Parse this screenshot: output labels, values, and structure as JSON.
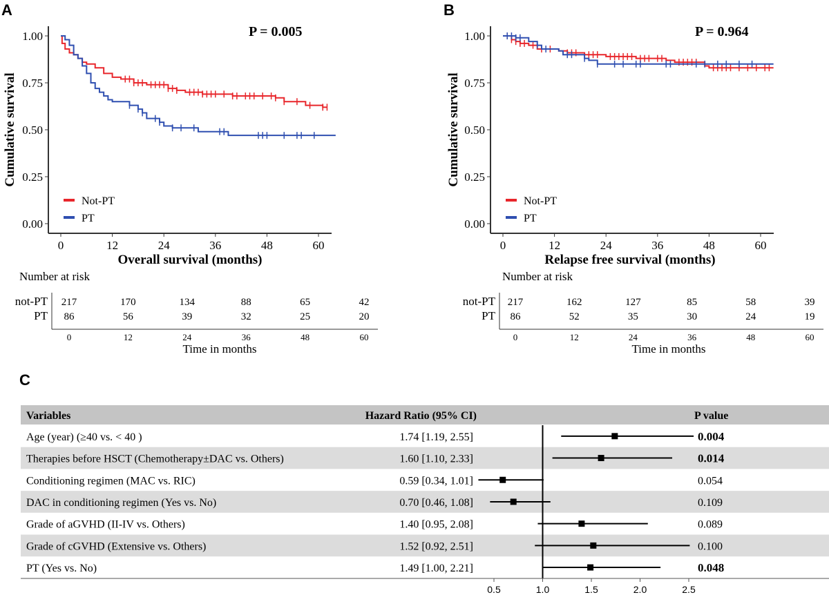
{
  "panel_labels": {
    "a": "A",
    "b": "B",
    "c": "C"
  },
  "colors": {
    "not_pt": "#e8262b",
    "pt": "#2f4fb0",
    "stripe": "#dcdcdc",
    "header": "#c4c4c4"
  },
  "chart_data": [
    {
      "type": "line",
      "subtype": "kaplan-meier",
      "p_label": "P = 0.005",
      "xlabel": "Overall  survival (months)",
      "ylabel": "Cumulative survival",
      "xlim": [
        0,
        62
      ],
      "ylim": [
        0,
        1
      ],
      "xticks": [
        "0",
        "12",
        "24",
        "36",
        "48",
        "60"
      ],
      "yticks": [
        "0.00",
        "0.25",
        "0.50",
        "0.75",
        "1.00"
      ],
      "legend_position": "bottom-left",
      "series": [
        {
          "name": "Not-PT",
          "color": "#e8262b",
          "steps": [
            [
              0,
              1.0
            ],
            [
              0.3,
              0.96
            ],
            [
              1,
              0.93
            ],
            [
              2,
              0.91
            ],
            [
              3,
              0.9
            ],
            [
              4,
              0.88
            ],
            [
              5,
              0.86
            ],
            [
              6,
              0.85
            ],
            [
              8,
              0.83
            ],
            [
              10,
              0.8
            ],
            [
              12,
              0.78
            ],
            [
              14,
              0.77
            ],
            [
              17,
              0.75
            ],
            [
              20,
              0.74
            ],
            [
              25,
              0.72
            ],
            [
              27,
              0.71
            ],
            [
              29,
              0.7
            ],
            [
              33,
              0.69
            ],
            [
              40,
              0.68
            ],
            [
              50,
              0.67
            ],
            [
              52,
              0.65
            ],
            [
              57,
              0.63
            ],
            [
              61,
              0.62
            ]
          ],
          "end": 62,
          "censored": [
            15,
            16,
            17,
            18,
            19,
            21,
            22,
            23,
            24,
            25,
            26,
            27,
            30,
            31,
            32,
            33,
            34,
            35,
            36,
            38,
            40,
            41,
            43,
            44,
            45,
            47,
            49,
            50,
            52,
            55,
            58,
            61,
            62
          ]
        },
        {
          "name": "PT",
          "color": "#2f4fb0",
          "steps": [
            [
              0,
              1.0
            ],
            [
              1,
              0.98
            ],
            [
              2,
              0.95
            ],
            [
              3,
              0.9
            ],
            [
              4,
              0.88
            ],
            [
              5,
              0.84
            ],
            [
              6,
              0.8
            ],
            [
              7,
              0.75
            ],
            [
              8,
              0.72
            ],
            [
              9,
              0.7
            ],
            [
              10,
              0.68
            ],
            [
              11,
              0.66
            ],
            [
              12,
              0.65
            ],
            [
              16,
              0.63
            ],
            [
              18,
              0.61
            ],
            [
              19,
              0.59
            ],
            [
              20,
              0.56
            ],
            [
              23,
              0.54
            ],
            [
              24,
              0.52
            ],
            [
              26,
              0.51
            ],
            [
              32,
              0.49
            ],
            [
              39,
              0.47
            ]
          ],
          "end": 64,
          "censored": [
            16,
            18,
            19,
            22,
            23,
            26,
            28,
            31,
            37,
            38,
            46,
            47,
            48,
            52,
            55,
            56,
            59
          ]
        }
      ],
      "risk_table": {
        "title": "Number at risk",
        "xlabel": "Time in months",
        "times": [
          "0",
          "12",
          "24",
          "36",
          "48",
          "60"
        ],
        "rows": [
          {
            "label": "not-PT",
            "values": [
              "217",
              "170",
              "134",
              "88",
              "65",
              "42"
            ]
          },
          {
            "label": "PT",
            "values": [
              "86",
              "56",
              "39",
              "32",
              "25",
              "20"
            ]
          }
        ]
      }
    },
    {
      "type": "line",
      "subtype": "kaplan-meier",
      "p_label": "P = 0.964",
      "xlabel": "Relapse free survival (months)",
      "ylabel": "Cumulative  survival",
      "xlim": [
        0,
        62
      ],
      "ylim": [
        0,
        1
      ],
      "xticks": [
        "0",
        "12",
        "24",
        "36",
        "48",
        "60"
      ],
      "yticks": [
        "0.00",
        "0.25",
        "0.50",
        "0.75",
        "1.00"
      ],
      "legend_position": "bottom-left",
      "series": [
        {
          "name": "Not-PT",
          "color": "#e8262b",
          "steps": [
            [
              0,
              1.0
            ],
            [
              2,
              0.98
            ],
            [
              3,
              0.97
            ],
            [
              4,
              0.96
            ],
            [
              6,
              0.95
            ],
            [
              8,
              0.93
            ],
            [
              13,
              0.92
            ],
            [
              15,
              0.91
            ],
            [
              19,
              0.9
            ],
            [
              24,
              0.89
            ],
            [
              31,
              0.88
            ],
            [
              38,
              0.87
            ],
            [
              40,
              0.86
            ],
            [
              47,
              0.84
            ],
            [
              48,
              0.83
            ]
          ],
          "end": 63,
          "censored": [
            1,
            2,
            3,
            4,
            5,
            7,
            9,
            11,
            15,
            16,
            17,
            20,
            21,
            22,
            25,
            26,
            27,
            28,
            29,
            30,
            32,
            33,
            34,
            36,
            37,
            41,
            42,
            43,
            44,
            45,
            49,
            50,
            51,
            52,
            53,
            55,
            57,
            59,
            61,
            62
          ]
        },
        {
          "name": "PT",
          "color": "#2f4fb0",
          "steps": [
            [
              0,
              1.0
            ],
            [
              3,
              0.99
            ],
            [
              6,
              0.97
            ],
            [
              8,
              0.95
            ],
            [
              9,
              0.93
            ],
            [
              13,
              0.92
            ],
            [
              14,
              0.9
            ],
            [
              19,
              0.88
            ],
            [
              20,
              0.87
            ],
            [
              22,
              0.85
            ]
          ],
          "end": 63,
          "censored": [
            1,
            2,
            3,
            4,
            8,
            10,
            15,
            16,
            19,
            22,
            26,
            28,
            31,
            32,
            38,
            39,
            45,
            47,
            50,
            52,
            55,
            58
          ]
        }
      ],
      "risk_table": {
        "title": "Number at risk",
        "xlabel": "Time in months",
        "times": [
          "0",
          "12",
          "24",
          "36",
          "48",
          "60"
        ],
        "rows": [
          {
            "label": "not-PT",
            "values": [
              "217",
              "162",
              "127",
              "85",
              "58",
              "39"
            ]
          },
          {
            "label": "PT",
            "values": [
              "86",
              "52",
              "35",
              "30",
              "24",
              "19"
            ]
          }
        ]
      }
    },
    {
      "type": "forest",
      "headers": {
        "variables": "Variables",
        "hr": "Hazard Ratio (95% CI)",
        "p": "P value"
      },
      "xticks": [
        "0.5",
        "1.0",
        "1.5",
        "2.0",
        "2.5"
      ],
      "xlim": [
        0.5,
        2.5
      ],
      "reference": 1.0,
      "rows": [
        {
          "label": "Age (year) (≥40 vs. < 40 )",
          "hr_text": "1.74 [1.19, 2.55]",
          "hr": 1.74,
          "lo": 1.19,
          "hi": 2.55,
          "p": "0.004",
          "significant": true
        },
        {
          "label": "Therapies before HSCT (Chemotherapy±DAC vs. Others)",
          "hr_text": "1.60 [1.10, 2.33]",
          "hr": 1.6,
          "lo": 1.1,
          "hi": 2.33,
          "p": "0.014",
          "significant": true
        },
        {
          "label": "Conditioning regimen (MAC vs. RIC)",
          "hr_text": "0.59 [0.34, 1.01]",
          "hr": 0.59,
          "lo": 0.34,
          "hi": 1.01,
          "p": "0.054",
          "significant": false
        },
        {
          "label": "DAC in conditioning regimen (Yes vs. No)",
          "hr_text": "0.70 [0.46, 1.08]",
          "hr": 0.7,
          "lo": 0.46,
          "hi": 1.08,
          "p": "0.109",
          "significant": false
        },
        {
          "label": "Grade of aGVHD (II-IV vs. Others)",
          "hr_text": "1.40 [0.95, 2.08]",
          "hr": 1.4,
          "lo": 0.95,
          "hi": 2.08,
          "p": "0.089",
          "significant": false
        },
        {
          "label": "Grade of cGVHD (Extensive vs. Others)",
          "hr_text": "1.52 [0.92, 2.51]",
          "hr": 1.52,
          "lo": 0.92,
          "hi": 2.51,
          "p": "0.100",
          "significant": false
        },
        {
          "label": "PT (Yes vs. No)",
          "hr_text": "1.49 [1.00, 2.21]",
          "hr": 1.49,
          "lo": 1.0,
          "hi": 2.21,
          "p": "0.048",
          "significant": true
        }
      ]
    }
  ]
}
